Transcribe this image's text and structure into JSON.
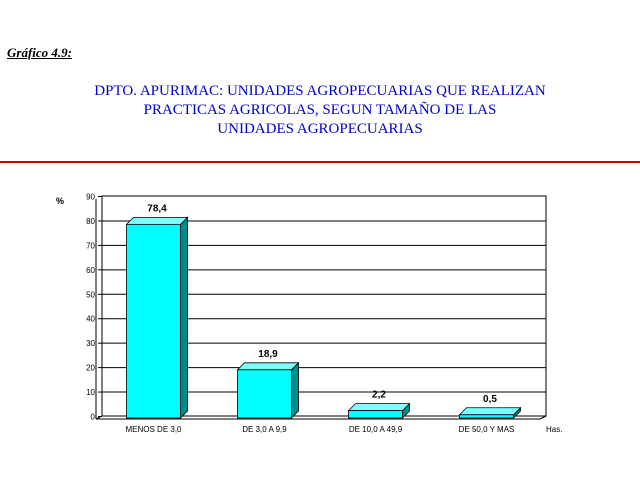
{
  "figure_label": "Gráfico 4.9:",
  "title_lines": [
    "DPTO. APURIMAC: UNIDADES AGROPECUARIAS QUE REALIZAN",
    "PRACTICAS AGRICOLAS, SEGUN TAMAÑO DE LAS",
    "UNIDADES AGROPECUARIAS"
  ],
  "colors": {
    "title": "#0000cc",
    "rule": "#cc0000",
    "bar_front": "#00ffff",
    "bar_side": "#008b8b",
    "bar_top": "#7fffff"
  },
  "chart_data": {
    "type": "bar",
    "categories": [
      "MENOS DE 3,0",
      "DE 3,0  A 9,9",
      "DE 10,0 A 49,9",
      "DE 50,0 Y MAS"
    ],
    "values": [
      78.4,
      18.9,
      2.2,
      0.5
    ],
    "value_labels": [
      "78,4",
      "18,9",
      "2,2",
      "0,5"
    ],
    "ylabel": "%",
    "xlabel": "Has.",
    "ylim": [
      0,
      90
    ],
    "yticks": [
      0,
      10,
      20,
      30,
      40,
      50,
      60,
      70,
      80,
      90
    ],
    "grid": true,
    "legend": "none"
  }
}
